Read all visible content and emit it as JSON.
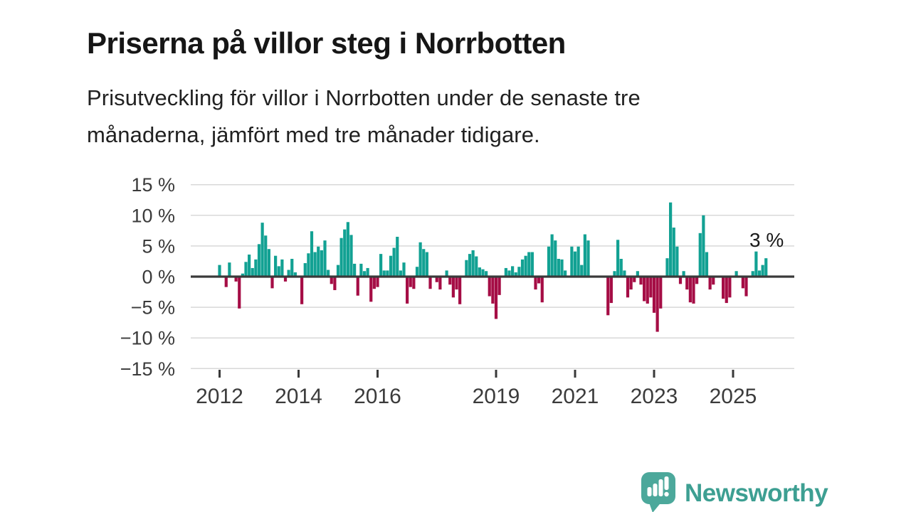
{
  "title": "Priserna på villor steg i Norrbotten",
  "subtitle_lines": [
    "Prisutveckling för villor i Norrbotten under de senaste tre",
    "månaderna, jämfört med tre månader tidigare."
  ],
  "branding": {
    "logo_text": "Newsworthy"
  },
  "chart_data": {
    "type": "bar",
    "title": "Priserna på villor steg i Norrbotten",
    "subtitle": "Prisutveckling för villor i Norrbotten under de senaste tre månaderna, jämfört med tre månader tidigare.",
    "unit": "%",
    "frequency": "monthly",
    "start": "2012-01",
    "xlabel": "",
    "ylabel": "",
    "ylim": [
      -15,
      15
    ],
    "grid": true,
    "y_ticks": [
      15,
      10,
      5,
      0,
      -5,
      -10,
      -15
    ],
    "y_tick_labels": [
      "15 %",
      "10 %",
      "5 %",
      "0 %",
      "−5 %",
      "−10 %",
      "−15 %"
    ],
    "x_ticks": [
      2012,
      2014,
      2016,
      2019,
      2021,
      2023,
      2025
    ],
    "x_tick_labels": [
      "2012",
      "2014",
      "2016",
      "2019",
      "2021",
      "2023",
      "2025"
    ],
    "annotation": {
      "text": "3 %",
      "value": 3
    },
    "colors": {
      "positive": "#12a193",
      "negative": "#a50d45",
      "zero_axis": "#3a3a3a",
      "grid": "#d8d8d8",
      "axis_text": "#3b3b3b"
    },
    "values": [
      1.9,
      0,
      -1.7,
      2.3,
      0,
      -0.8,
      -5.2,
      0.5,
      2.4,
      3.6,
      1.4,
      2.8,
      5.3,
      8.8,
      6.7,
      4.5,
      -1.9,
      3.4,
      1.7,
      2.8,
      -0.8,
      1.1,
      2.9,
      0.7,
      0,
      -4.5,
      2.2,
      3.8,
      7.4,
      4.0,
      4.9,
      4.3,
      5.9,
      1.1,
      -1.2,
      -2.2,
      1.9,
      6.3,
      7.7,
      8.9,
      6.8,
      2.1,
      -3.1,
      2.1,
      0.9,
      1.4,
      -4.1,
      -2.0,
      -1.7,
      3.7,
      1.0,
      1.0,
      3.4,
      4.7,
      6.5,
      1.0,
      2.3,
      -4.4,
      -1.7,
      -2.0,
      1.6,
      5.6,
      4.5,
      4.0,
      -2.0,
      0,
      -0.9,
      -2.1,
      0,
      1.0,
      -1.3,
      -3.4,
      -2.1,
      -4.5,
      0,
      2.7,
      3.7,
      4.3,
      3.3,
      1.5,
      1.2,
      0.9,
      -3.2,
      -4.4,
      -6.9,
      -3.0,
      0,
      1.4,
      1.0,
      1.7,
      0.7,
      1.6,
      2.8,
      3.4,
      4.0,
      4.0,
      -2.1,
      -1.1,
      -4.2,
      0,
      4.9,
      6.9,
      5.9,
      2.9,
      2.8,
      1.0,
      0,
      4.9,
      4.1,
      4.9,
      1.9,
      6.9,
      5.9,
      0,
      0,
      0,
      0,
      0,
      -6.3,
      -4.3,
      0.9,
      6.0,
      2.9,
      1.0,
      -3.4,
      -2.1,
      -0.9,
      0.9,
      -1.3,
      -4.0,
      -4.4,
      -3.4,
      -5.9,
      -9.0,
      -5.2,
      0,
      3.0,
      12.1,
      8.0,
      4.9,
      -1.2,
      0.9,
      -2.1,
      -4.2,
      -4.4,
      -1.2,
      7.1,
      10.0,
      4.0,
      -2.1,
      -1.3,
      0,
      0,
      -3.6,
      -4.3,
      -3.4,
      0,
      0.9,
      0,
      -1.9,
      -3.2,
      0,
      0.9,
      4.1,
      1.0,
      1.9,
      3.0
    ]
  }
}
